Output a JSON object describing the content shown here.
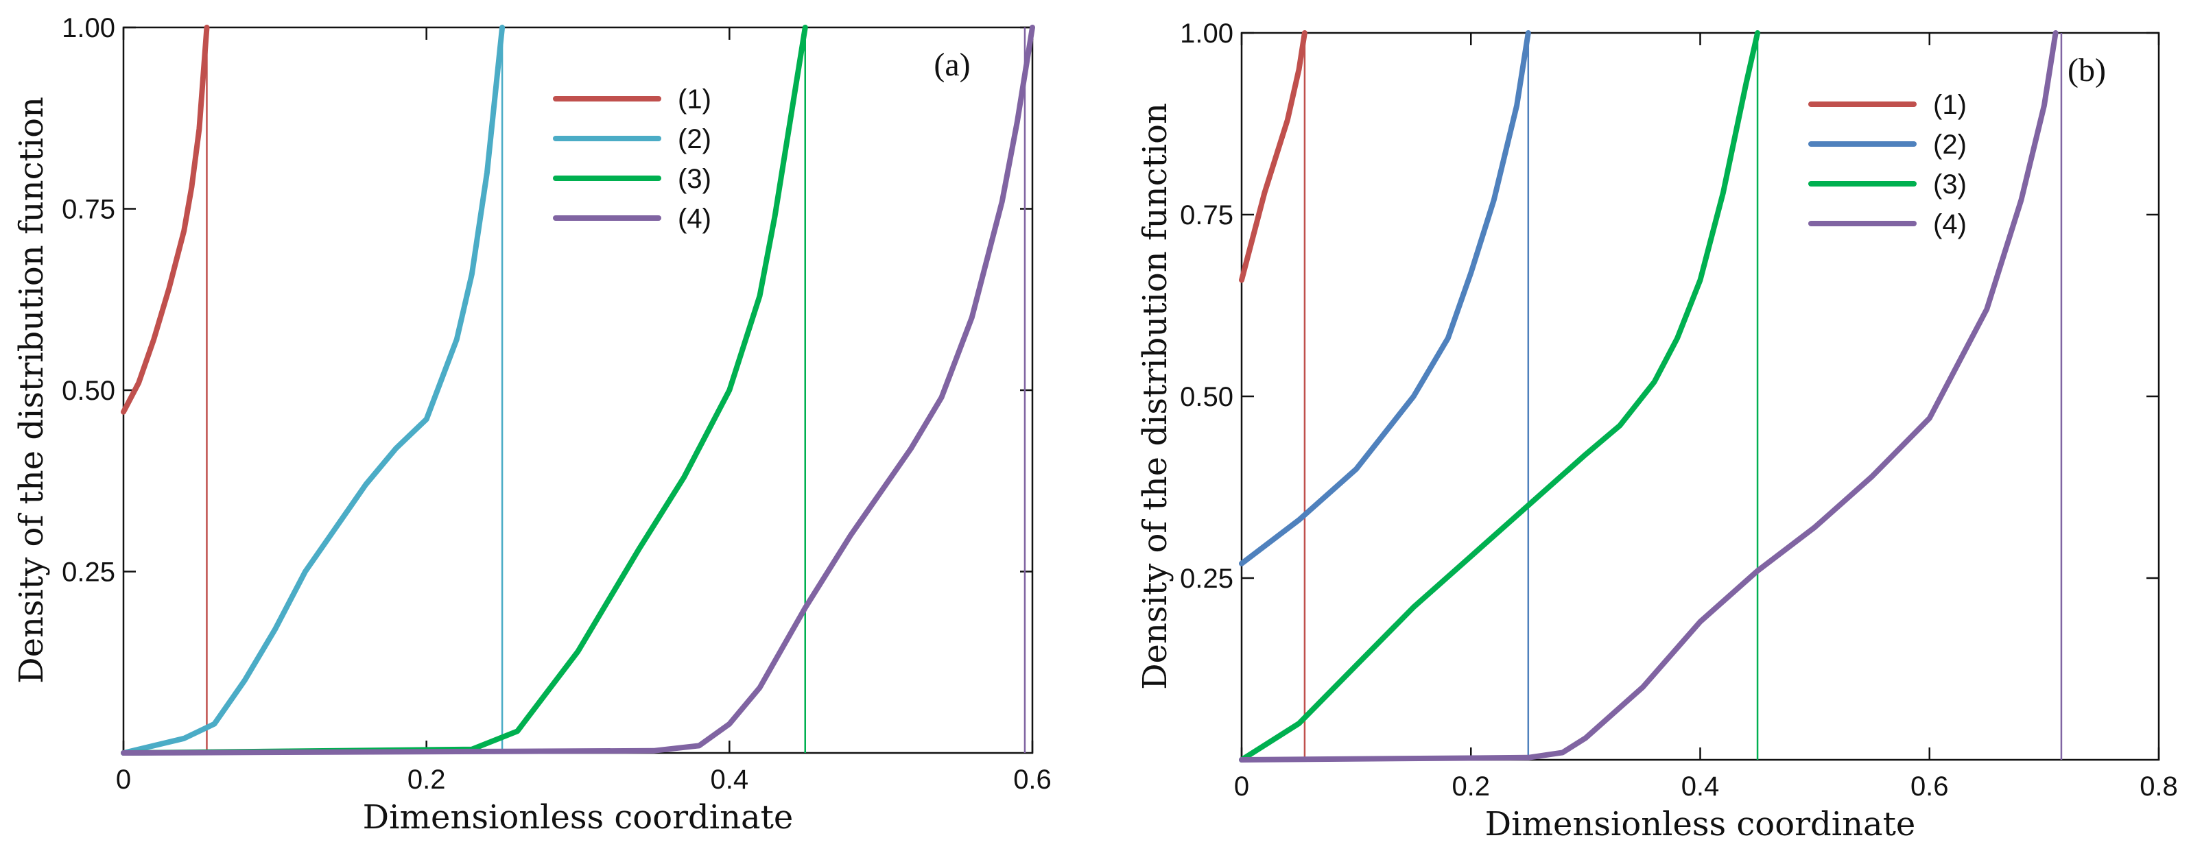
{
  "chart_data": [
    {
      "type": "line",
      "panel_label": "(a)",
      "xlabel": "Dimensionless coordinate",
      "ylabel": "Density of the distribution  function",
      "xlim": [
        0,
        0.6
      ],
      "ylim": [
        0,
        1.0
      ],
      "x_ticks": [
        0,
        0.2,
        0.4,
        0.6
      ],
      "x_tick_labels": [
        "0",
        "0.2",
        "0.4",
        "0.6"
      ],
      "y_ticks": [
        0.25,
        0.5,
        0.75,
        1.0
      ],
      "y_tick_labels": [
        "0.25",
        "0.50",
        "0.75",
        "1.00"
      ],
      "grid": false,
      "legend_position": "top-right",
      "series": [
        {
          "name": "(1)",
          "color": "#c0504d",
          "x": [
            0.0,
            0.01,
            0.02,
            0.03,
            0.04,
            0.045,
            0.05,
            0.055
          ],
          "y": [
            0.47,
            0.51,
            0.57,
            0.64,
            0.72,
            0.78,
            0.86,
            1.0
          ],
          "cutoff_x": 0.055
        },
        {
          "name": "(2)",
          "color": "#4bacc6",
          "x": [
            0.0,
            0.02,
            0.04,
            0.06,
            0.08,
            0.1,
            0.12,
            0.14,
            0.16,
            0.18,
            0.2,
            0.22,
            0.23,
            0.24,
            0.25
          ],
          "y": [
            0.0,
            0.01,
            0.02,
            0.04,
            0.1,
            0.17,
            0.25,
            0.31,
            0.37,
            0.42,
            0.46,
            0.57,
            0.66,
            0.8,
            1.0
          ],
          "cutoff_x": 0.25
        },
        {
          "name": "(3)",
          "color": "#00b050",
          "x": [
            0.0,
            0.23,
            0.26,
            0.3,
            0.34,
            0.37,
            0.4,
            0.42,
            0.43,
            0.44,
            0.45
          ],
          "y": [
            0.0,
            0.005,
            0.03,
            0.14,
            0.28,
            0.38,
            0.5,
            0.63,
            0.74,
            0.87,
            1.0
          ],
          "cutoff_x": 0.45
        },
        {
          "name": "(4)",
          "color": "#8064a2",
          "x": [
            0.0,
            0.35,
            0.38,
            0.4,
            0.42,
            0.45,
            0.48,
            0.5,
            0.52,
            0.54,
            0.56,
            0.58,
            0.59,
            0.6
          ],
          "y": [
            0.0,
            0.003,
            0.01,
            0.04,
            0.09,
            0.2,
            0.3,
            0.36,
            0.42,
            0.49,
            0.6,
            0.76,
            0.87,
            1.0
          ],
          "cutoff_x": 0.595
        }
      ]
    },
    {
      "type": "line",
      "panel_label": "(b)",
      "xlabel": "Dimensionless coordinate",
      "ylabel": "Density of the distribution function",
      "xlim": [
        0,
        0.8
      ],
      "ylim": [
        0,
        1.0
      ],
      "x_ticks": [
        0,
        0.2,
        0.4,
        0.6,
        0.8
      ],
      "x_tick_labels": [
        "0",
        "0.2",
        "0.4",
        "0.6",
        "0.8"
      ],
      "y_ticks": [
        0.25,
        0.5,
        0.75,
        1.0
      ],
      "y_tick_labels": [
        "0.25",
        "0.50",
        "0.75",
        "1.00"
      ],
      "grid": false,
      "legend_position": "top-right",
      "series": [
        {
          "name": "(1)",
          "color": "#c0504d",
          "x": [
            0.0,
            0.01,
            0.02,
            0.03,
            0.04,
            0.05,
            0.055
          ],
          "y": [
            0.66,
            0.72,
            0.78,
            0.83,
            0.88,
            0.95,
            1.0
          ],
          "cutoff_x": 0.055
        },
        {
          "name": "(2)",
          "color": "#4f81bd",
          "x": [
            0.0,
            0.05,
            0.1,
            0.15,
            0.18,
            0.2,
            0.22,
            0.24,
            0.25
          ],
          "y": [
            0.27,
            0.33,
            0.4,
            0.5,
            0.58,
            0.67,
            0.77,
            0.9,
            1.0
          ],
          "cutoff_x": 0.25
        },
        {
          "name": "(3)",
          "color": "#00b050",
          "x": [
            0.0,
            0.05,
            0.1,
            0.15,
            0.2,
            0.25,
            0.3,
            0.33,
            0.36,
            0.38,
            0.4,
            0.42,
            0.44,
            0.45
          ],
          "y": [
            0.0,
            0.05,
            0.13,
            0.21,
            0.28,
            0.35,
            0.42,
            0.46,
            0.52,
            0.58,
            0.66,
            0.78,
            0.93,
            1.0
          ],
          "cutoff_x": 0.45
        },
        {
          "name": "(4)",
          "color": "#8064a2",
          "x": [
            0.0,
            0.25,
            0.28,
            0.3,
            0.35,
            0.4,
            0.45,
            0.5,
            0.55,
            0.6,
            0.65,
            0.68,
            0.7,
            0.71
          ],
          "y": [
            0.0,
            0.003,
            0.01,
            0.03,
            0.1,
            0.19,
            0.26,
            0.32,
            0.39,
            0.47,
            0.62,
            0.77,
            0.9,
            1.0
          ],
          "cutoff_x": 0.715
        }
      ]
    }
  ]
}
